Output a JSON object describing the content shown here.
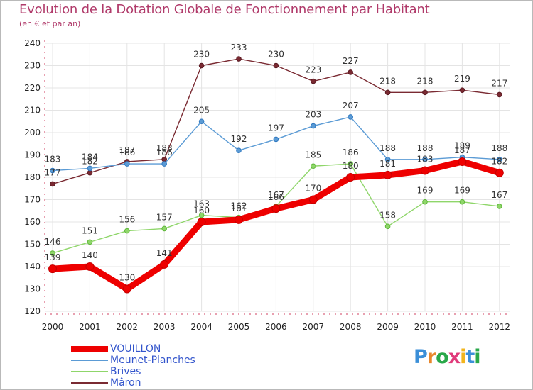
{
  "header": {
    "title": "Evolution de la Dotation Globale de Fonctionnement par Habitant",
    "subtitle": "(en € et par an)"
  },
  "logo": {
    "text": "Proxiti",
    "letter_colors": [
      "#3b8fd8",
      "#e8872b",
      "#2aa84a",
      "#e03a7a",
      "#f2b51d",
      "#3b8fd8",
      "#2aa84a"
    ]
  },
  "chart_data": {
    "type": "line",
    "x": [
      "2000",
      "2001",
      "2002",
      "2003",
      "2004",
      "2005",
      "2006",
      "2007",
      "2008",
      "2009",
      "2010",
      "2011",
      "2012"
    ],
    "ylim": [
      120,
      240
    ],
    "yticks": [
      120,
      130,
      140,
      150,
      160,
      170,
      180,
      190,
      200,
      210,
      220,
      230,
      240
    ],
    "grid": true,
    "legend_position": "bottom-left",
    "series": [
      {
        "name": "VOUILLON",
        "color": "#ee0000",
        "values": [
          139,
          140,
          130,
          141,
          160,
          161,
          166,
          170,
          180,
          181,
          183,
          187,
          182
        ]
      },
      {
        "name": "Meunet-Planches",
        "color": "#5b9bd5",
        "values": [
          183,
          184,
          186,
          186,
          205,
          192,
          197,
          203,
          207,
          188,
          188,
          189,
          188
        ]
      },
      {
        "name": "Brives",
        "color": "#8fd66a",
        "values": [
          146,
          151,
          156,
          157,
          163,
          162,
          167,
          185,
          186,
          158,
          169,
          169,
          167
        ]
      },
      {
        "name": "Mâron",
        "color": "#7a2a32",
        "values": [
          177,
          182,
          187,
          188,
          230,
          233,
          230,
          223,
          227,
          218,
          218,
          219,
          217
        ]
      }
    ]
  }
}
